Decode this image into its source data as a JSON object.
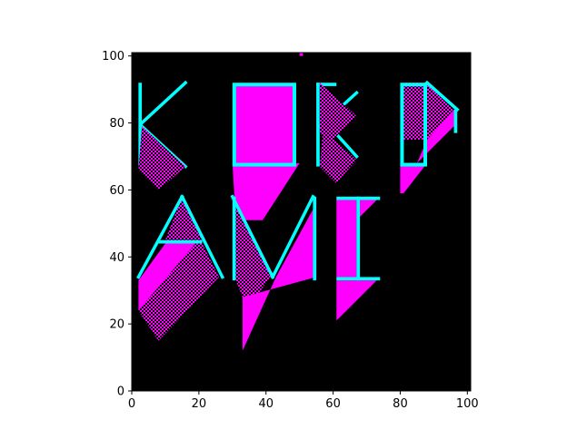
{
  "chart_data": {
    "type": "heatmap",
    "title": "",
    "xlabel": "",
    "ylabel": "",
    "xlim": [
      0,
      101
    ],
    "ylim": [
      0,
      101
    ],
    "grid": false,
    "x_ticks": [
      "0",
      "20",
      "40",
      "60",
      "80",
      "100"
    ],
    "y_ticks": [
      "0",
      "20",
      "40",
      "60",
      "80",
      "100"
    ],
    "colors": {
      "background": "#000000",
      "fill": "#ff00ff",
      "outline": "#00ffff"
    },
    "blocks": [
      {
        "kind": "cyan-rect",
        "x0": 2,
        "x1": 3,
        "y0": 67,
        "y1": 92
      },
      {
        "kind": "cyan-line",
        "points": [
          [
            3,
            80
          ],
          [
            16,
            92
          ]
        ]
      },
      {
        "kind": "cyan-line",
        "points": [
          [
            3,
            79
          ],
          [
            16,
            67
          ]
        ]
      },
      {
        "kind": "hatch-poly",
        "points": [
          [
            3,
            79
          ],
          [
            16,
            67
          ],
          [
            8,
            60
          ],
          [
            2,
            66
          ]
        ]
      },
      {
        "kind": "magenta-poly",
        "points": [
          [
            30,
            68
          ],
          [
            50,
            68
          ],
          [
            39,
            51
          ],
          [
            31,
            51
          ]
        ]
      },
      {
        "kind": "magenta-rect",
        "x0": 31,
        "x1": 48,
        "y0": 68,
        "y1": 91
      },
      {
        "kind": "cyan-outline",
        "x0": 30,
        "x1": 49,
        "y0": 67,
        "y1": 92
      },
      {
        "kind": "cyan-rect",
        "x0": 55,
        "x1": 56,
        "y0": 67,
        "y1": 92
      },
      {
        "kind": "cyan-rect",
        "x0": 55,
        "x1": 61,
        "y0": 91,
        "y1": 92
      },
      {
        "kind": "cyan-line",
        "points": [
          [
            56,
            79
          ],
          [
            67,
            89
          ]
        ]
      },
      {
        "kind": "cyan-line",
        "points": [
          [
            58,
            80
          ],
          [
            67,
            70
          ]
        ]
      },
      {
        "kind": "hatch-poly",
        "points": [
          [
            56,
            92
          ],
          [
            67,
            82
          ],
          [
            59,
            74
          ],
          [
            56,
            77
          ]
        ]
      },
      {
        "kind": "hatch-poly",
        "points": [
          [
            57,
            78
          ],
          [
            67,
            69
          ],
          [
            61,
            62
          ],
          [
            56,
            67
          ]
        ]
      },
      {
        "kind": "magenta-poly",
        "points": [
          [
            80,
            68
          ],
          [
            88,
            68
          ],
          [
            81,
            59
          ],
          [
            80,
            59
          ]
        ]
      },
      {
        "kind": "hatch-poly",
        "points": [
          [
            81,
            92
          ],
          [
            88,
            92
          ],
          [
            96,
            84
          ],
          [
            88,
            75
          ],
          [
            81,
            75
          ]
        ]
      },
      {
        "kind": "magenta-poly",
        "points": [
          [
            88,
            75
          ],
          [
            96,
            84
          ],
          [
            96,
            79
          ],
          [
            85,
            68
          ]
        ]
      },
      {
        "kind": "cyan-outline",
        "x0": 80,
        "x1": 88,
        "y0": 67,
        "y1": 92
      },
      {
        "kind": "cyan-line",
        "points": [
          [
            88,
            92
          ],
          [
            97,
            84
          ]
        ]
      },
      {
        "kind": "cyan-rect",
        "x0": 96,
        "x1": 97,
        "y0": 77,
        "y1": 84
      },
      {
        "kind": "hatch-poly",
        "points": [
          [
            10,
            45
          ],
          [
            15,
            58
          ],
          [
            21,
            45
          ]
        ]
      },
      {
        "kind": "magenta-poly",
        "points": [
          [
            2,
            33
          ],
          [
            2,
            24
          ],
          [
            19,
            44
          ],
          [
            10,
            44
          ]
        ]
      },
      {
        "kind": "hatch-poly",
        "points": [
          [
            2,
            24
          ],
          [
            8,
            15
          ],
          [
            26,
            34
          ],
          [
            21,
            44
          ],
          [
            19,
            44
          ]
        ]
      },
      {
        "kind": "cyan-line",
        "points": [
          [
            2,
            34
          ],
          [
            15,
            58
          ]
        ]
      },
      {
        "kind": "cyan-line",
        "points": [
          [
            15,
            58
          ],
          [
            27,
            34
          ]
        ]
      },
      {
        "kind": "cyan-rect",
        "x0": 8,
        "x1": 21,
        "y0": 44,
        "y1": 45
      },
      {
        "kind": "hatch-poly",
        "points": [
          [
            31,
            55
          ],
          [
            42,
            35
          ],
          [
            37,
            28
          ],
          [
            33,
            28
          ],
          [
            31,
            33
          ]
        ]
      },
      {
        "kind": "magenta-poly",
        "points": [
          [
            33,
            28
          ],
          [
            55,
            34
          ],
          [
            55,
            56
          ],
          [
            43,
            34
          ],
          [
            33,
            12
          ]
        ]
      },
      {
        "kind": "cyan-line",
        "points": [
          [
            30,
            58
          ],
          [
            42,
            34
          ]
        ]
      },
      {
        "kind": "cyan-line",
        "points": [
          [
            42,
            34
          ],
          [
            54,
            58
          ]
        ]
      },
      {
        "kind": "cyan-rect",
        "x0": 30,
        "x1": 31,
        "y0": 33,
        "y1": 58
      },
      {
        "kind": "cyan-rect",
        "x0": 54,
        "x1": 55,
        "y0": 33,
        "y1": 58
      },
      {
        "kind": "magenta-poly",
        "points": [
          [
            61,
            33
          ],
          [
            73,
            33
          ],
          [
            61,
            21
          ]
        ]
      },
      {
        "kind": "magenta-rect",
        "x0": 61,
        "x1": 67,
        "y0": 34,
        "y1": 57
      },
      {
        "kind": "magenta-poly",
        "points": [
          [
            68,
            57
          ],
          [
            73,
            57
          ],
          [
            68,
            52
          ]
        ]
      },
      {
        "kind": "cyan-rect",
        "x0": 61,
        "x1": 74,
        "y0": 57,
        "y1": 58
      },
      {
        "kind": "cyan-rect",
        "x0": 67,
        "x1": 68,
        "y0": 33,
        "y1": 58
      },
      {
        "kind": "cyan-rect",
        "x0": 61,
        "x1": 74,
        "y0": 33,
        "y1": 34
      },
      {
        "kind": "magenta-rect",
        "x0": 50,
        "x1": 51,
        "y0": 100,
        "y1": 101
      }
    ]
  }
}
